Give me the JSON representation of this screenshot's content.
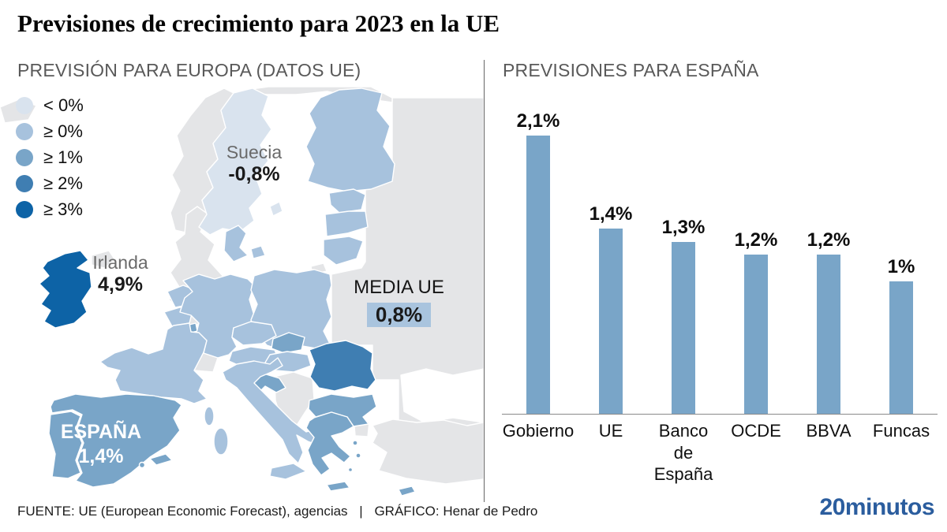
{
  "title": "Previsiones de crecimiento para 2023 en la UE",
  "panels": {
    "europe": {
      "header": "PREVISIÓN PARA EUROPA (DATOS UE)",
      "legend": [
        {
          "label": "< 0%",
          "color": "#d9e3ee"
        },
        {
          "label": "≥ 0%",
          "color": "#a7c2dd"
        },
        {
          "label": "≥ 1%",
          "color": "#79a5c8"
        },
        {
          "label": "≥ 2%",
          "color": "#3f7eb2"
        },
        {
          "label": "≥ 3%",
          "color": "#0d63a6"
        }
      ],
      "annotations": {
        "sweden": {
          "name": "Suecia",
          "value": "-0,8%"
        },
        "ireland": {
          "name": "Irlanda",
          "value": "4,9%"
        },
        "eu_average": {
          "name": "MEDIA UE",
          "value": "0,8%"
        },
        "spain": {
          "name": "ESPAÑA",
          "value": "1,4%"
        }
      },
      "map": {
        "colors": {
          "lt0": "#d9e3ee",
          "gte0": "#a7c2dd",
          "gte1": "#79a5c8",
          "gte2": "#3f7eb2",
          "gte3": "#0d63a6",
          "non_eu": "#e4e5e7",
          "sea": "#ffffff"
        },
        "countries": {
          "iceland": "non_eu",
          "norway": "non_eu",
          "norway_north": "non_eu",
          "sweden": "lt0",
          "gotland": "lt0",
          "finland": "gte0",
          "estonia": "gte0",
          "latvia": "gte0",
          "lithuania": "gte0",
          "kaliningrad": "non_eu",
          "denmark": "gte0",
          "zealand": "gte0",
          "uk": "non_eu",
          "northern_ireland": "non_eu",
          "ireland": "gte3",
          "netherlands": "gte0",
          "belgium": "gte0",
          "luxembourg": "gte1",
          "germany": "gte0",
          "poland": "gte0",
          "czechia": "gte0",
          "austria": "gte0",
          "slovakia": "gte1",
          "hungary": "gte0",
          "slovenia": "gte1",
          "croatia": "gte1",
          "switzerland": "non_eu",
          "france": "gte0",
          "corsica": "gte0",
          "italy": "gte0",
          "sicily": "gte0",
          "sardinia": "gte0",
          "spain": "gte1",
          "balearics": "gte1",
          "ibiza": "gte1",
          "portugal": "gte1",
          "romania": "gte2",
          "bulgaria": "gte1",
          "greece": "gte1",
          "greek_island_1": "gte1",
          "greek_island_2": "gte1",
          "greek_island_3": "gte1",
          "crete": "gte1",
          "cyprus": "gte1",
          "eastern_europe": "non_eu",
          "black_sea": "sea",
          "turkey": "non_eu",
          "thrace": "non_eu",
          "balkans": "non_eu"
        }
      }
    },
    "spain_forecasts": {
      "header": "PREVISIONES PARA ESPAÑA"
    }
  },
  "chart_data": {
    "type": "bar",
    "title": "PREVISIONES PARA ESPAÑA",
    "categories": [
      "Gobierno",
      "UE",
      "Banco de España",
      "OCDE",
      "BBVA",
      "Funcas"
    ],
    "category_lines": [
      [
        "Gobierno"
      ],
      [
        "UE"
      ],
      [
        "Banco",
        "de",
        "España"
      ],
      [
        "OCDE"
      ],
      [
        "BBVA"
      ],
      [
        "Funcas"
      ]
    ],
    "values": [
      2.1,
      1.4,
      1.3,
      1.2,
      1.2,
      1.0
    ],
    "value_labels": [
      "2,1%",
      "1,4%",
      "1,3%",
      "1,2%",
      "1,2%",
      "1%"
    ],
    "xlabel": "",
    "ylabel": "",
    "ylim": [
      0,
      2.35
    ],
    "grid": false,
    "legend_position": "none",
    "bar_color": "#79a5c8",
    "axis_line_color": "#8a8a8a"
  },
  "footer": {
    "source": "FUENTE: UE (European Economic Forecast), agencias",
    "separator": "|",
    "credit": "GRÁFICO: Henar de Pedro",
    "logo": "20minutos"
  }
}
